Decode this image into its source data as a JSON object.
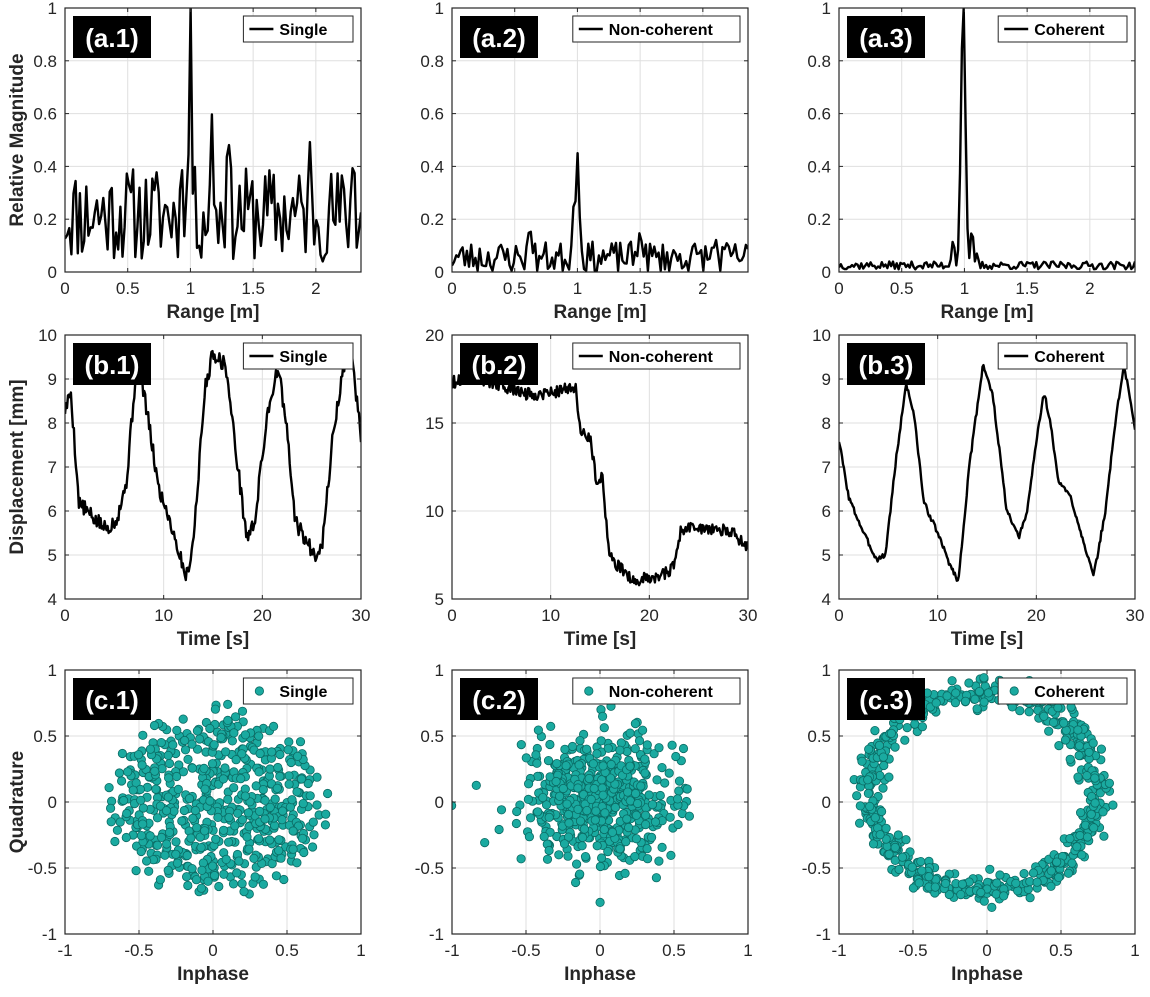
{
  "colors": {
    "line": "#000000",
    "marker": "#1aaaa0",
    "marker_edge": "#0b6b64",
    "grid": "#dfdfdf",
    "axis": "#262626",
    "tag_bg": "#000000"
  },
  "chart_data": [
    {
      "id": "a1",
      "panel_label": "(a.1)",
      "type": "line",
      "legend": "Single",
      "xlabel": "Range [m]",
      "ylabel": "Relative Magnitude",
      "xlim": [
        0,
        2.36
      ],
      "ylim": [
        0,
        1
      ],
      "xticks": [
        0,
        0.5,
        1,
        1.5,
        2
      ],
      "xtick_labels": [
        "0",
        "0.5",
        "1",
        "1.5",
        "2"
      ],
      "yticks": [
        0,
        0.2,
        0.4,
        0.6,
        0.8,
        1
      ],
      "ytick_labels": [
        "0",
        "0.2",
        "0.4",
        "0.6",
        "0.8",
        "1"
      ],
      "series": [
        {
          "name": "Single",
          "gen": "spectrum",
          "peak_x": 1.0,
          "peak_y": 1.0,
          "width": 0.012,
          "base": 0.22,
          "amp": 0.18,
          "seed": 11,
          "n": 140,
          "extra": [
            [
              1.17,
              0.6
            ],
            [
              0.93,
              0.4
            ],
            [
              1.3,
              0.55
            ],
            [
              1.95,
              0.5
            ],
            [
              2.3,
              0.46
            ]
          ]
        }
      ]
    },
    {
      "id": "a2",
      "panel_label": "(a.2)",
      "type": "line",
      "legend": "Non-coherent",
      "xlabel": "Range [m]",
      "ylabel": "",
      "xlim": [
        0,
        2.36
      ],
      "ylim": [
        0,
        1
      ],
      "xticks": [
        0,
        0.5,
        1,
        1.5,
        2
      ],
      "xtick_labels": [
        "0",
        "0.5",
        "1",
        "1.5",
        "2"
      ],
      "yticks": [
        0,
        0.2,
        0.4,
        0.6,
        0.8,
        1
      ],
      "ytick_labels": [
        "0",
        "0.2",
        "0.4",
        "0.6",
        "0.8",
        "1"
      ],
      "series": [
        {
          "name": "Non-coherent",
          "gen": "spectrum",
          "peak_x": 1.0,
          "peak_y": 0.45,
          "width": 0.015,
          "base": 0.055,
          "amp": 0.06,
          "seed": 23,
          "n": 140,
          "extra": [
            [
              0.62,
              0.18
            ],
            [
              0.97,
              0.25
            ],
            [
              1.5,
              0.16
            ],
            [
              2.1,
              0.13
            ]
          ]
        }
      ]
    },
    {
      "id": "a3",
      "panel_label": "(a.3)",
      "type": "line",
      "legend": "Coherent",
      "xlabel": "Range [m]",
      "ylabel": "",
      "xlim": [
        0,
        2.36
      ],
      "ylim": [
        0,
        1
      ],
      "xticks": [
        0,
        0.5,
        1,
        1.5,
        2
      ],
      "xtick_labels": [
        "0",
        "0.5",
        "1",
        "1.5",
        "2"
      ],
      "yticks": [
        0,
        0.2,
        0.4,
        0.6,
        0.8,
        1
      ],
      "ytick_labels": [
        "0",
        "0.2",
        "0.4",
        "0.6",
        "0.8",
        "1"
      ],
      "series": [
        {
          "name": "Coherent",
          "gen": "spectrum",
          "peak_x": 0.99,
          "peak_y": 1.0,
          "width": 0.018,
          "base": 0.025,
          "amp": 0.015,
          "seed": 37,
          "n": 160,
          "extra": [
            [
              0.91,
              0.12
            ],
            [
              1.06,
              0.16
            ],
            [
              1.1,
              0.07
            ]
          ]
        }
      ]
    },
    {
      "id": "b1",
      "panel_label": "(b.1)",
      "type": "line",
      "legend": "Single",
      "xlabel": "Time [s]",
      "ylabel": "Displacement [mm]",
      "xlim": [
        0,
        30
      ],
      "ylim": [
        4,
        10
      ],
      "xticks": [
        0,
        10,
        20,
        30
      ],
      "xtick_labels": [
        "0",
        "10",
        "20",
        "30"
      ],
      "yticks": [
        4,
        5,
        6,
        7,
        8,
        9,
        10
      ],
      "ytick_labels": [
        "4",
        "5",
        "6",
        "7",
        "8",
        "9",
        "10"
      ],
      "series": [
        {
          "name": "Single",
          "gen": "poly",
          "noise": 0.18,
          "seed": 5,
          "n": 300,
          "points": [
            [
              0,
              8.3
            ],
            [
              0.6,
              8.7
            ],
            [
              1.4,
              6.2
            ],
            [
              3,
              5.8
            ],
            [
              4.2,
              5.6
            ],
            [
              5.2,
              5.8
            ],
            [
              6.2,
              6.6
            ],
            [
              7.3,
              9.4
            ],
            [
              8,
              8.7
            ],
            [
              9.5,
              6.5
            ],
            [
              10.5,
              5.9
            ],
            [
              11.5,
              5.1
            ],
            [
              12.3,
              4.5
            ],
            [
              13,
              5.3
            ],
            [
              14.2,
              8.8
            ],
            [
              15,
              9.6
            ],
            [
              16.3,
              9.3
            ],
            [
              17.3,
              7.4
            ],
            [
              18.4,
              5.4
            ],
            [
              19.2,
              5.7
            ],
            [
              20.5,
              8.2
            ],
            [
              21.6,
              9.3
            ],
            [
              22.5,
              7.8
            ],
            [
              23.3,
              5.8
            ],
            [
              24.2,
              5.4
            ],
            [
              25.3,
              5.0
            ],
            [
              26.1,
              5.3
            ],
            [
              27.2,
              7.8
            ],
            [
              28.2,
              9.2
            ],
            [
              29,
              9.6
            ],
            [
              30,
              7.7
            ]
          ]
        }
      ]
    },
    {
      "id": "b2",
      "panel_label": "(b.2)",
      "type": "line",
      "legend": "Non-coherent",
      "xlabel": "Time [s]",
      "ylabel": "",
      "xlim": [
        0,
        30
      ],
      "ylim": [
        5,
        20
      ],
      "xticks": [
        0,
        10,
        20,
        30
      ],
      "xtick_labels": [
        "0",
        "10",
        "20",
        "30"
      ],
      "yticks": [
        5,
        10,
        15,
        20
      ],
      "ytick_labels": [
        "5",
        "10",
        "15",
        "20"
      ],
      "series": [
        {
          "name": "Non-coherent",
          "gen": "poly",
          "noise": 0.35,
          "seed": 9,
          "n": 300,
          "points": [
            [
              0,
              17.3
            ],
            [
              2,
              17.7
            ],
            [
              4,
              17.3
            ],
            [
              6,
              16.9
            ],
            [
              8,
              16.6
            ],
            [
              10.5,
              16.8
            ],
            [
              12.5,
              17.1
            ],
            [
              13,
              14.5
            ],
            [
              14,
              14.2
            ],
            [
              14.6,
              11.9
            ],
            [
              15.3,
              11.8
            ],
            [
              15.8,
              8.0
            ],
            [
              16.5,
              7.0
            ],
            [
              17.5,
              6.6
            ],
            [
              18.5,
              6.0
            ],
            [
              19.5,
              6.2
            ],
            [
              21,
              6.3
            ],
            [
              22.5,
              6.8
            ],
            [
              23.2,
              8.9
            ],
            [
              24.5,
              9.1
            ],
            [
              26,
              9.0
            ],
            [
              27.5,
              8.9
            ],
            [
              28.5,
              8.7
            ],
            [
              30,
              8.0
            ]
          ]
        }
      ]
    },
    {
      "id": "b3",
      "panel_label": "(b.3)",
      "type": "line",
      "legend": "Coherent",
      "xlabel": "Time [s]",
      "ylabel": "",
      "xlim": [
        0,
        30
      ],
      "ylim": [
        4,
        10
      ],
      "xticks": [
        0,
        10,
        20,
        30
      ],
      "xtick_labels": [
        "0",
        "10",
        "20",
        "30"
      ],
      "yticks": [
        4,
        5,
        6,
        7,
        8,
        9,
        10
      ],
      "ytick_labels": [
        "4",
        "5",
        "6",
        "7",
        "8",
        "9",
        "10"
      ],
      "series": [
        {
          "name": "Coherent",
          "gen": "poly",
          "noise": 0.06,
          "seed": 3,
          "n": 300,
          "points": [
            [
              0,
              7.6
            ],
            [
              1,
              6.3
            ],
            [
              2.5,
              5.5
            ],
            [
              3.8,
              4.9
            ],
            [
              4.7,
              5.0
            ],
            [
              5.8,
              7.2
            ],
            [
              6.8,
              8.9
            ],
            [
              7.6,
              8.2
            ],
            [
              8.6,
              6.2
            ],
            [
              10,
              5.5
            ],
            [
              11.2,
              4.8
            ],
            [
              12.1,
              4.4
            ],
            [
              13.2,
              7.0
            ],
            [
              14.6,
              9.35
            ],
            [
              15.6,
              8.6
            ],
            [
              17,
              6.0
            ],
            [
              18.2,
              5.4
            ],
            [
              19,
              5.9
            ],
            [
              20.2,
              7.9
            ],
            [
              20.8,
              8.7
            ],
            [
              21.5,
              7.9
            ],
            [
              22.2,
              6.7
            ],
            [
              23.5,
              6.3
            ],
            [
              24.8,
              5.3
            ],
            [
              25.8,
              4.5
            ],
            [
              27,
              6.0
            ],
            [
              28.1,
              8.2
            ],
            [
              28.9,
              9.3
            ],
            [
              30,
              7.9
            ]
          ]
        }
      ]
    },
    {
      "id": "c1",
      "panel_label": "(c.1)",
      "type": "scatter",
      "legend": "Single",
      "xlabel": "Inphase",
      "ylabel": "Quadrature",
      "xlim": [
        -1,
        1
      ],
      "ylim": [
        -1,
        1
      ],
      "xticks": [
        -1,
        -0.5,
        0,
        0.5,
        1
      ],
      "xtick_labels": [
        "-1",
        "-0.5",
        "0",
        "0.5",
        "1"
      ],
      "yticks": [
        -1,
        -0.5,
        0,
        0.5,
        1
      ],
      "ytick_labels": [
        "-1",
        "-0.5",
        "0",
        "0.5",
        "1"
      ],
      "series": [
        {
          "name": "Single",
          "gen": "disk",
          "n": 600,
          "cx": 0.03,
          "cy": 0.0,
          "r": 0.72,
          "rmin": 0.0,
          "seed": 41
        }
      ]
    },
    {
      "id": "c2",
      "panel_label": "(c.2)",
      "type": "scatter",
      "legend": "Non-coherent",
      "xlabel": "Inphase",
      "ylabel": "",
      "xlim": [
        -1,
        1
      ],
      "ylim": [
        -1,
        1
      ],
      "xticks": [
        -1,
        -0.5,
        0,
        0.5,
        1
      ],
      "xtick_labels": [
        "-1",
        "-0.5",
        "0",
        "0.5",
        "1"
      ],
      "yticks": [
        -1,
        -0.5,
        0,
        0.5,
        1
      ],
      "ytick_labels": [
        "-1",
        "-0.5",
        "0",
        "0.5",
        "1"
      ],
      "series": [
        {
          "name": "Non-coherent",
          "gen": "gauss",
          "n": 600,
          "cx": 0.0,
          "cy": 0.0,
          "sx": 0.25,
          "sy": 0.25,
          "seed": 57
        }
      ]
    },
    {
      "id": "c3",
      "panel_label": "(c.3)",
      "type": "scatter",
      "legend": "Coherent",
      "xlabel": "Inphase",
      "ylabel": "",
      "xlim": [
        -1,
        1
      ],
      "ylim": [
        -1,
        1
      ],
      "xticks": [
        -1,
        -0.5,
        0,
        0.5,
        1
      ],
      "xtick_labels": [
        "-1",
        "-0.5",
        "0",
        "0.5",
        "1"
      ],
      "yticks": [
        -1,
        -0.5,
        0,
        0.5,
        1
      ],
      "ytick_labels": [
        "-1",
        "-0.5",
        "0",
        "0.5",
        "1"
      ],
      "series": [
        {
          "name": "Coherent",
          "gen": "ring",
          "n": 600,
          "cx": -0.03,
          "cy": 0.08,
          "rx": 0.77,
          "ry": 0.75,
          "spread": 0.05,
          "seed": 71
        }
      ]
    }
  ]
}
